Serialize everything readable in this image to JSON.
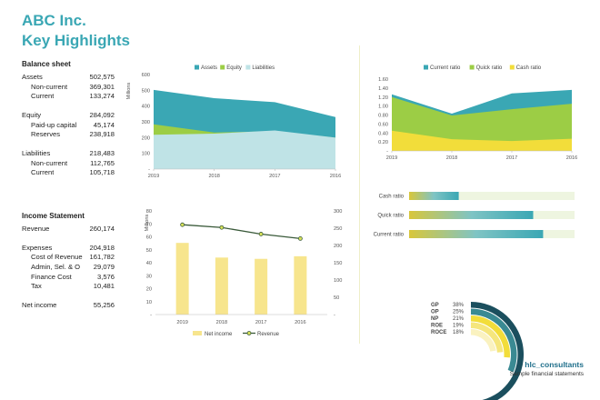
{
  "header": {
    "company": "ABC Inc.",
    "subtitle": "Key Highlights"
  },
  "balance_sheet": {
    "title": "Balance sheet",
    "assets": {
      "label": "Assets",
      "value": "502,575"
    },
    "noncurrent_a": {
      "label": "Non-current",
      "value": "369,301"
    },
    "current_a": {
      "label": "Current",
      "value": "133,274"
    },
    "equity": {
      "label": "Equity",
      "value": "284,092"
    },
    "paid_up": {
      "label": "Paid-up capital",
      "value": "45,174"
    },
    "reserves": {
      "label": "Reserves",
      "value": "238,918"
    },
    "liabilities": {
      "label": "Liabilities",
      "value": "218,483"
    },
    "noncurrent_l": {
      "label": "Non-current",
      "value": "112,765"
    },
    "current_l": {
      "label": "Current",
      "value": "105,718"
    }
  },
  "income_statement": {
    "title": "Income Statement",
    "revenue": {
      "label": "Revenue",
      "value": "260,174"
    },
    "expenses": {
      "label": "Expenses",
      "value": "204,918"
    },
    "cost_rev": {
      "label": "Cost of Revenue",
      "value": "161,782"
    },
    "admin": {
      "label": "Admin, Sel. & O",
      "value": "29,079"
    },
    "fin_cost": {
      "label": "Finance Cost",
      "value": "3,576"
    },
    "tax": {
      "label": "Tax",
      "value": "10,481"
    },
    "net": {
      "label": "Net income",
      "value": "55,256"
    }
  },
  "chart_data": [
    {
      "type": "area",
      "title": "",
      "categories": [
        "2019",
        "2018",
        "2017",
        "2016"
      ],
      "ylabel": "Millions",
      "ylim": [
        0,
        600
      ],
      "yticks": [
        "600",
        "500",
        "400",
        "300",
        "200",
        "100",
        "-"
      ],
      "series": [
        {
          "name": "Assets",
          "values": [
            503,
            450,
            425,
            330
          ],
          "color": "#3aa7b4"
        },
        {
          "name": "Equity",
          "values": [
            284,
            232,
            240,
            200
          ],
          "color": "#9ccd45"
        },
        {
          "name": "Liabilities",
          "values": [
            218,
            225,
            245,
            200
          ],
          "color": "#bfe3e6"
        }
      ]
    },
    {
      "type": "area",
      "title": "",
      "categories": [
        "2019",
        "2018",
        "2017",
        "2016"
      ],
      "ylim": [
        0,
        1.6
      ],
      "yticks": [
        "1.60",
        "1.40",
        "1.20",
        "1.00",
        "0.80",
        "0.60",
        "0.40",
        "0.20",
        "-"
      ],
      "series": [
        {
          "name": "Current ratio",
          "values": [
            1.26,
            0.83,
            1.28,
            1.36
          ],
          "color": "#3aa7b4"
        },
        {
          "name": "Quick ratio",
          "values": [
            1.2,
            0.79,
            0.93,
            1.05
          ],
          "color": "#9ccd45"
        },
        {
          "name": "Cash ratio",
          "values": [
            0.45,
            0.26,
            0.22,
            0.27
          ],
          "color": "#f2dd3a"
        }
      ]
    },
    {
      "type": "bar",
      "title": "",
      "categories": [
        "Cash ratio",
        "Quick ratio",
        "Current ratio"
      ],
      "values": [
        0.3,
        0.75,
        0.81
      ],
      "xlim": [
        0,
        1
      ]
    },
    {
      "type": "bar",
      "title": "",
      "categories": [
        "2019",
        "2018",
        "2017",
        "2016"
      ],
      "ylabel": "Millions",
      "ylim": [
        0,
        80
      ],
      "yticks": [
        "80",
        "70",
        "60",
        "50",
        "40",
        "30",
        "20",
        "10",
        "-"
      ],
      "y2lim": [
        0,
        300
      ],
      "y2ticks": [
        "300",
        "250",
        "200",
        "150",
        "100",
        "50",
        "-"
      ],
      "series": [
        {
          "name": "Net income",
          "values": [
            55.3,
            44,
            43,
            45
          ],
          "color": "#f7e58d"
        },
        {
          "name": "Revenue",
          "values": [
            260,
            252,
            233,
            220
          ],
          "color": "#3a5a3a",
          "axis": "secondary"
        }
      ]
    },
    {
      "type": "bar",
      "title": "",
      "categories": [
        "GP",
        "OP",
        "NP",
        "ROE",
        "ROCE"
      ],
      "values": [
        38,
        25,
        21,
        19,
        18
      ],
      "labels": [
        "38%",
        "25%",
        "21%",
        "19%",
        "18%"
      ],
      "colors": [
        "#1b4f5e",
        "#3a8a93",
        "#f2dd3a",
        "#f5e67d",
        "#faf2c0"
      ]
    }
  ],
  "footer": {
    "brand": "hlc_consultants",
    "caption": "Sample financial statements"
  }
}
